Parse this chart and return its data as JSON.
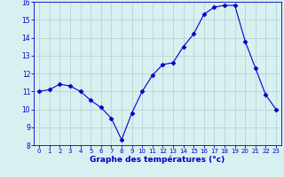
{
  "hours": [
    0,
    1,
    2,
    3,
    4,
    5,
    6,
    7,
    8,
    9,
    10,
    11,
    12,
    13,
    14,
    15,
    16,
    17,
    18,
    19,
    20,
    21,
    22,
    23
  ],
  "temps": [
    11.0,
    11.1,
    11.4,
    11.3,
    11.0,
    10.5,
    10.1,
    9.5,
    8.3,
    9.8,
    11.0,
    11.9,
    12.5,
    12.6,
    13.5,
    14.2,
    15.3,
    15.7,
    15.8,
    15.8,
    13.8,
    12.3,
    10.8,
    10.0
  ],
  "line_color": "#0000cc",
  "marker": "D",
  "marker_size": 2.5,
  "bg_color": "#d8f0f0",
  "grid_color": "#b8d4d4",
  "xlabel": "Graphe des températures (°c)",
  "xlabel_color": "#0000cc",
  "tick_color": "#0000cc",
  "ylim": [
    8,
    16
  ],
  "xlim": [
    -0.5,
    23.5
  ],
  "yticks": [
    8,
    9,
    10,
    11,
    12,
    13,
    14,
    15,
    16
  ],
  "xticks": [
    0,
    1,
    2,
    3,
    4,
    5,
    6,
    7,
    8,
    9,
    10,
    11,
    12,
    13,
    14,
    15,
    16,
    17,
    18,
    19,
    20,
    21,
    22,
    23
  ],
  "figsize": [
    3.2,
    2.0
  ],
  "dpi": 100
}
